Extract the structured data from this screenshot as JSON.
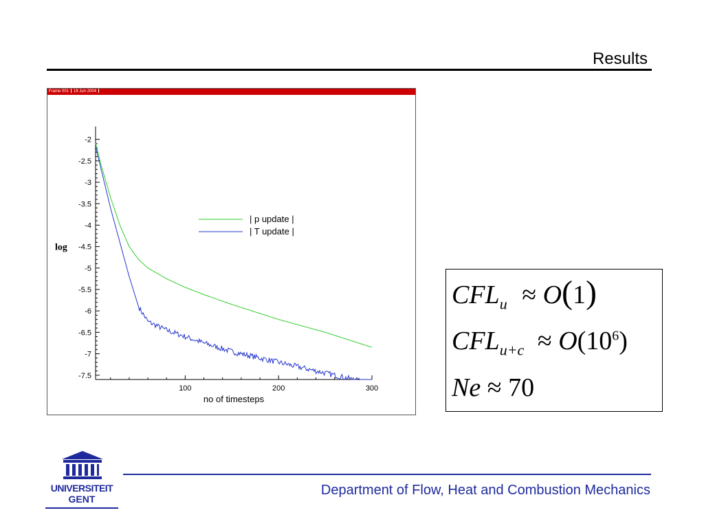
{
  "slide": {
    "title": "Results",
    "footer": "Department of Flow, Heat and Combustion Mechanics",
    "logo": {
      "line1": "UNIVERSITEIT",
      "line2": "GENT"
    }
  },
  "frame_header": {
    "frame": "Frame 001",
    "date": "18 Jun 2004"
  },
  "formulas": {
    "line1": {
      "lhs": "CFL",
      "sub": "u",
      "op": "≈",
      "func": "O",
      "arg": "1"
    },
    "line2": {
      "lhs": "CFL",
      "sub": "u+c",
      "op": "≈",
      "func": "O",
      "base": "10",
      "exp": "6"
    },
    "line3": {
      "lhs": "Ne",
      "op": "≈",
      "value": "70"
    }
  },
  "colors": {
    "p_update": "#2ecc2e",
    "T_update": "#2233cc",
    "footer_blue": "#1e2a9c",
    "frame_header": "#cc0000"
  },
  "chart_data": {
    "type": "line",
    "title": "",
    "xlabel": "no of timesteps",
    "ylabel": "log",
    "xlim": [
      0,
      300
    ],
    "ylim": [
      -7.6,
      -1.7
    ],
    "xticks": [
      "100",
      "200",
      "300"
    ],
    "yticks": [
      "-2",
      "-2.5",
      "-3",
      "-3.5",
      "-4",
      "-4.5",
      "-5",
      "-5.5",
      "-6",
      "-6.5",
      "-7",
      "-7.5"
    ],
    "legend_position": "upper-middle",
    "series": [
      {
        "name": "| p update |",
        "x": [
          0,
          10,
          20,
          30,
          40,
          50,
          60,
          80,
          100,
          120,
          150,
          200,
          250,
          300
        ],
        "y": [
          -1.75,
          -2.6,
          -3.35,
          -4.0,
          -4.5,
          -4.8,
          -5.0,
          -5.25,
          -5.45,
          -5.62,
          -5.85,
          -6.2,
          -6.5,
          -6.85
        ]
      },
      {
        "name": "| T update |",
        "x": [
          0,
          10,
          20,
          30,
          40,
          50,
          60,
          70,
          80,
          100,
          120,
          150,
          180,
          200,
          230,
          260,
          280,
          300
        ],
        "y": [
          -1.8,
          -2.7,
          -3.6,
          -4.4,
          -5.2,
          -5.9,
          -6.25,
          -6.35,
          -6.45,
          -6.6,
          -6.75,
          -6.95,
          -7.1,
          -7.2,
          -7.35,
          -7.5,
          -7.6,
          -7.7
        ]
      }
    ]
  }
}
